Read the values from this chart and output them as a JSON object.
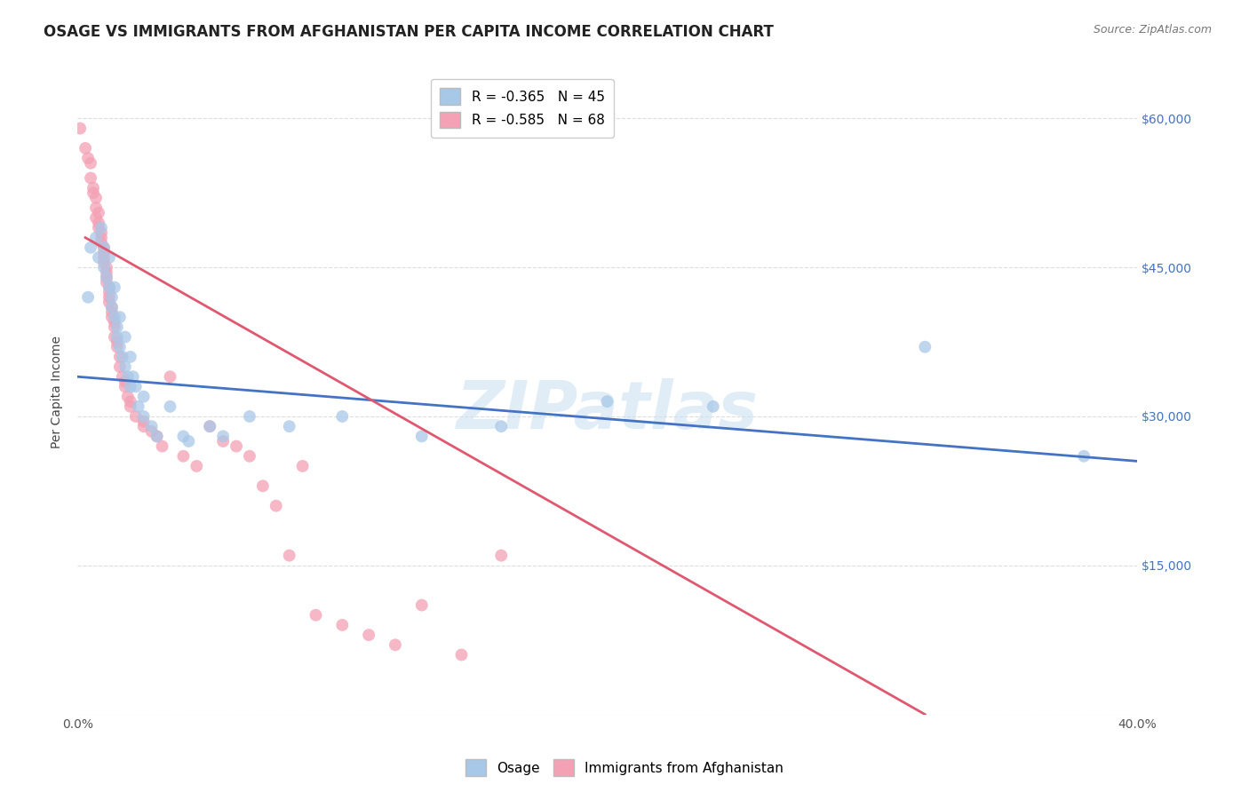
{
  "title": "OSAGE VS IMMIGRANTS FROM AFGHANISTAN PER CAPITA INCOME CORRELATION CHART",
  "source": "Source: ZipAtlas.com",
  "ylabel": "Per Capita Income",
  "xlim": [
    0.0,
    0.4
  ],
  "ylim": [
    0,
    65000
  ],
  "yticks": [
    0,
    15000,
    30000,
    45000,
    60000
  ],
  "ytick_labels": [
    "",
    "$15,000",
    "$30,000",
    "$45,000",
    "$60,000"
  ],
  "xticks": [
    0.0,
    0.05,
    0.1,
    0.15,
    0.2,
    0.25,
    0.3,
    0.35,
    0.4
  ],
  "xtick_labels": [
    "0.0%",
    "",
    "",
    "",
    "",
    "",
    "",
    "",
    "40.0%"
  ],
  "legend_blue_r": "R = -0.365",
  "legend_blue_n": "N = 45",
  "legend_pink_r": "R = -0.585",
  "legend_pink_n": "N = 68",
  "watermark": "ZIPatlas",
  "blue_color": "#a8c8e8",
  "pink_color": "#f4a0b5",
  "blue_line_color": "#4472c4",
  "pink_line_color": "#e05870",
  "osage_points": [
    [
      0.004,
      42000
    ],
    [
      0.005,
      47000
    ],
    [
      0.007,
      48000
    ],
    [
      0.008,
      46000
    ],
    [
      0.009,
      49000
    ],
    [
      0.01,
      47000
    ],
    [
      0.01,
      45000
    ],
    [
      0.011,
      44000
    ],
    [
      0.012,
      46000
    ],
    [
      0.012,
      43000
    ],
    [
      0.013,
      42000
    ],
    [
      0.013,
      41000
    ],
    [
      0.014,
      43000
    ],
    [
      0.014,
      40000
    ],
    [
      0.015,
      39000
    ],
    [
      0.015,
      38000
    ],
    [
      0.016,
      40000
    ],
    [
      0.016,
      37000
    ],
    [
      0.017,
      36000
    ],
    [
      0.018,
      38000
    ],
    [
      0.018,
      35000
    ],
    [
      0.019,
      34000
    ],
    [
      0.02,
      36000
    ],
    [
      0.02,
      33000
    ],
    [
      0.021,
      34000
    ],
    [
      0.022,
      33000
    ],
    [
      0.023,
      31000
    ],
    [
      0.025,
      32000
    ],
    [
      0.025,
      30000
    ],
    [
      0.028,
      29000
    ],
    [
      0.03,
      28000
    ],
    [
      0.035,
      31000
    ],
    [
      0.04,
      28000
    ],
    [
      0.042,
      27500
    ],
    [
      0.05,
      29000
    ],
    [
      0.055,
      28000
    ],
    [
      0.065,
      30000
    ],
    [
      0.08,
      29000
    ],
    [
      0.1,
      30000
    ],
    [
      0.13,
      28000
    ],
    [
      0.16,
      29000
    ],
    [
      0.2,
      31500
    ],
    [
      0.24,
      31000
    ],
    [
      0.32,
      37000
    ],
    [
      0.38,
      26000
    ]
  ],
  "afghan_points": [
    [
      0.001,
      59000
    ],
    [
      0.003,
      57000
    ],
    [
      0.004,
      56000
    ],
    [
      0.005,
      55500
    ],
    [
      0.005,
      54000
    ],
    [
      0.006,
      53000
    ],
    [
      0.006,
      52500
    ],
    [
      0.007,
      52000
    ],
    [
      0.007,
      51000
    ],
    [
      0.007,
      50000
    ],
    [
      0.008,
      50500
    ],
    [
      0.008,
      49500
    ],
    [
      0.008,
      49000
    ],
    [
      0.009,
      48500
    ],
    [
      0.009,
      48000
    ],
    [
      0.009,
      47500
    ],
    [
      0.01,
      47000
    ],
    [
      0.01,
      46500
    ],
    [
      0.01,
      46000
    ],
    [
      0.01,
      45500
    ],
    [
      0.011,
      45000
    ],
    [
      0.011,
      44500
    ],
    [
      0.011,
      44000
    ],
    [
      0.011,
      43500
    ],
    [
      0.012,
      43000
    ],
    [
      0.012,
      42500
    ],
    [
      0.012,
      42000
    ],
    [
      0.012,
      41500
    ],
    [
      0.013,
      41000
    ],
    [
      0.013,
      40500
    ],
    [
      0.013,
      40000
    ],
    [
      0.014,
      39500
    ],
    [
      0.014,
      39000
    ],
    [
      0.014,
      38000
    ],
    [
      0.015,
      37500
    ],
    [
      0.015,
      37000
    ],
    [
      0.016,
      36000
    ],
    [
      0.016,
      35000
    ],
    [
      0.017,
      34000
    ],
    [
      0.018,
      33500
    ],
    [
      0.018,
      33000
    ],
    [
      0.019,
      32000
    ],
    [
      0.02,
      31500
    ],
    [
      0.02,
      31000
    ],
    [
      0.022,
      30000
    ],
    [
      0.025,
      29500
    ],
    [
      0.025,
      29000
    ],
    [
      0.028,
      28500
    ],
    [
      0.03,
      28000
    ],
    [
      0.032,
      27000
    ],
    [
      0.035,
      34000
    ],
    [
      0.04,
      26000
    ],
    [
      0.045,
      25000
    ],
    [
      0.05,
      29000
    ],
    [
      0.055,
      27500
    ],
    [
      0.06,
      27000
    ],
    [
      0.065,
      26000
    ],
    [
      0.07,
      23000
    ],
    [
      0.075,
      21000
    ],
    [
      0.08,
      16000
    ],
    [
      0.085,
      25000
    ],
    [
      0.09,
      10000
    ],
    [
      0.1,
      9000
    ],
    [
      0.11,
      8000
    ],
    [
      0.12,
      7000
    ],
    [
      0.13,
      11000
    ],
    [
      0.145,
      6000
    ],
    [
      0.16,
      16000
    ]
  ],
  "blue_line_x": [
    0.0,
    0.4
  ],
  "blue_line_y": [
    34000,
    25500
  ],
  "pink_line_x": [
    0.003,
    0.32
  ],
  "pink_line_y": [
    48000,
    0
  ],
  "background_color": "#ffffff",
  "grid_color": "#dddddd",
  "title_fontsize": 12,
  "axis_label_fontsize": 10,
  "tick_fontsize": 10,
  "legend_fontsize": 11
}
